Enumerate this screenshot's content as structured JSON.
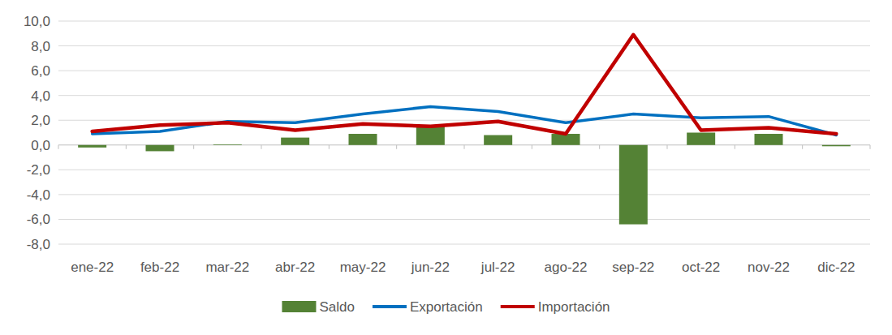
{
  "chart_data": {
    "type": "bar",
    "categories": [
      "ene-22",
      "feb-22",
      "mar-22",
      "abr-22",
      "may-22",
      "jun-22",
      "jul-22",
      "ago-22",
      "sep-22",
      "oct-22",
      "nov-22",
      "dic-22"
    ],
    "series": [
      {
        "name": "Saldo",
        "type": "bar",
        "color": "#548235",
        "values": [
          -0.2,
          -0.5,
          0.05,
          0.6,
          0.9,
          1.6,
          0.8,
          0.9,
          -6.4,
          1.0,
          0.9,
          -0.1
        ]
      },
      {
        "name": "Exportación",
        "type": "line",
        "color": "#0070c0",
        "values": [
          0.9,
          1.1,
          1.9,
          1.8,
          2.5,
          3.1,
          2.7,
          1.8,
          2.5,
          2.2,
          2.3,
          0.8
        ]
      },
      {
        "name": "Importación",
        "type": "line",
        "color": "#c00000",
        "values": [
          1.1,
          1.6,
          1.8,
          1.2,
          1.7,
          1.5,
          1.9,
          0.9,
          8.9,
          1.2,
          1.4,
          0.9
        ]
      }
    ],
    "ylim": [
      -8,
      10
    ],
    "yticks": [
      {
        "value": -8,
        "label": "-8,0"
      },
      {
        "value": -6,
        "label": "-6,0"
      },
      {
        "value": -4,
        "label": "-4,0"
      },
      {
        "value": -2,
        "label": "-2,0"
      },
      {
        "value": 0,
        "label": "0,0"
      },
      {
        "value": 2,
        "label": "2,0"
      },
      {
        "value": 4,
        "label": "4,0"
      },
      {
        "value": 6,
        "label": "6,0"
      },
      {
        "value": 8,
        "label": "8,0"
      },
      {
        "value": 10,
        "label": "10,0"
      }
    ],
    "grid": true,
    "legend": "bottom"
  }
}
